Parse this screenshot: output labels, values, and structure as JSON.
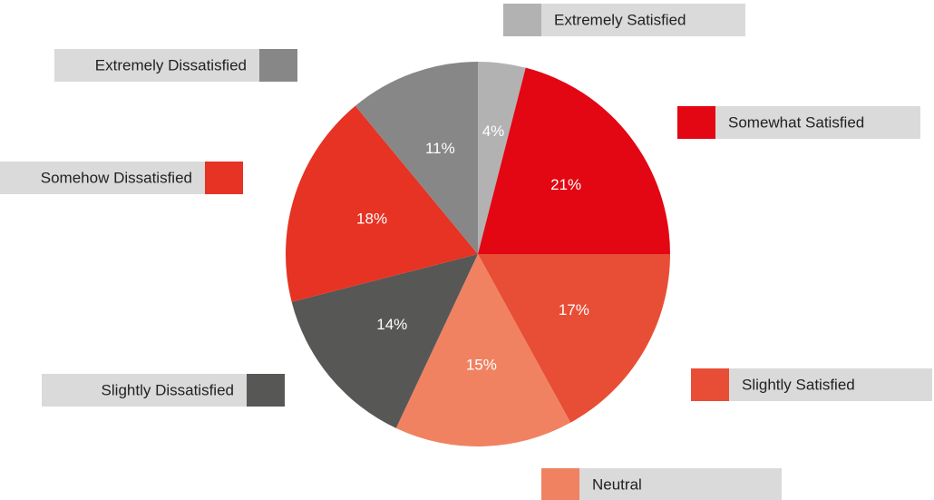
{
  "chart_data": {
    "type": "pie",
    "categories": [
      "Extremely Satisfied",
      "Somewhat Satisfied",
      "Slightly Satisfied",
      "Neutral",
      "Slightly Dissatisfied",
      "Somehow Dissatisfied",
      "Extremely Dissatisfied"
    ],
    "values": [
      4,
      21,
      17,
      15,
      14,
      18,
      11
    ],
    "value_labels": [
      "4%",
      "21%",
      "17%",
      "15%",
      "14%",
      "18%",
      "11%"
    ],
    "colors": [
      "#b2b2b2",
      "#e30613",
      "#e84e36",
      "#f08262",
      "#575756",
      "#e63323",
      "#878787"
    ]
  }
}
